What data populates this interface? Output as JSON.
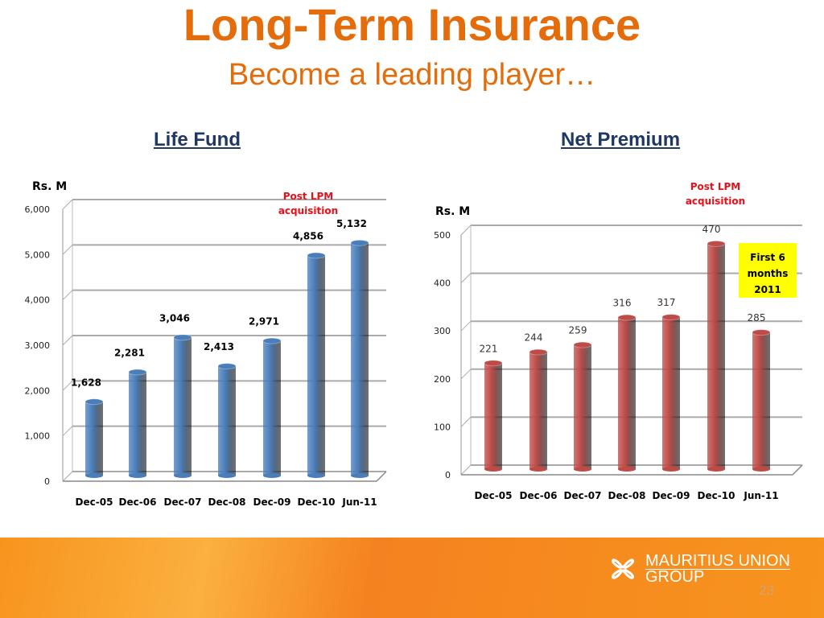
{
  "title": "Long-Term Insurance",
  "subtitle": "Become a leading player…",
  "footer": {
    "brand_line1": "MAURITIUS UNION",
    "brand_line2": "GROUP",
    "page_number": "23"
  },
  "chart_data": [
    {
      "type": "bar",
      "title": "Life Fund",
      "ylabel": "Rs. M",
      "ylim": [
        0,
        6000
      ],
      "yticks": [
        "0",
        "1,000",
        "2,000",
        "3,000",
        "4,000",
        "5,000",
        "6,000"
      ],
      "categories": [
        "Dec-05",
        "Dec-06",
        "Dec-07",
        "Dec-08",
        "Dec-09",
        "Dec-10",
        "Jun-11"
      ],
      "values": [
        1628,
        2281,
        3046,
        2413,
        2971,
        4856,
        5132
      ],
      "labels": [
        "1,628",
        "2,281",
        "3,046",
        "2,413",
        "2,971",
        "4,856",
        "5,132"
      ],
      "color": "#4a7ebb",
      "annotation": {
        "line1": "Post LPM",
        "line2": "acquisition",
        "color": "#e8101a"
      }
    },
    {
      "type": "bar",
      "title": "Net Premium",
      "ylabel": "Rs. M",
      "ylim": [
        0,
        500
      ],
      "yticks": [
        "0",
        "100",
        "200",
        "300",
        "400",
        "500"
      ],
      "categories": [
        "Dec-05",
        "Dec-06",
        "Dec-07",
        "Dec-08",
        "Dec-09",
        "Dec-10",
        "Jun-11"
      ],
      "values": [
        221,
        244,
        259,
        316,
        317,
        470,
        285
      ],
      "labels": [
        "221",
        "244",
        "259",
        "316",
        "317",
        "470",
        "285"
      ],
      "color": "#be4b48",
      "annotation": {
        "line1": "Post LPM",
        "line2": "acquisition",
        "color": "#e8101a"
      },
      "note": {
        "line1": "First 6",
        "line2": "months",
        "line3": "2011",
        "background": "#ffff00"
      }
    }
  ]
}
